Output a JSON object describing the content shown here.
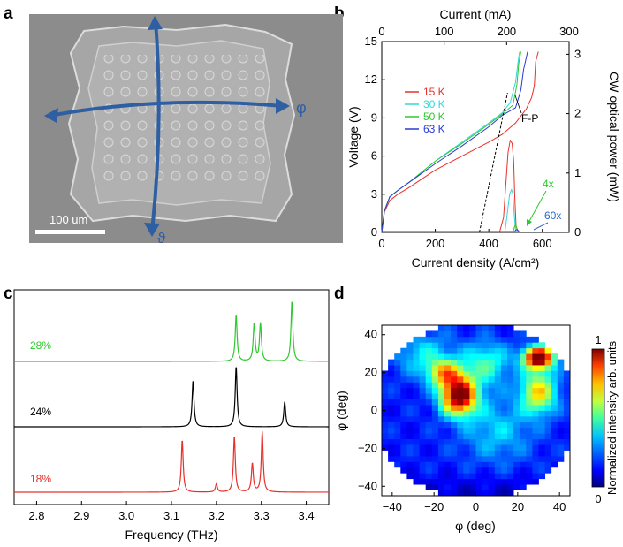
{
  "panels": {
    "a": "a",
    "b": "b",
    "c": "c",
    "d": "d"
  },
  "panel_a": {
    "scale_bar": "100 um",
    "axis_phi": "φ",
    "axis_theta": "ϑ",
    "colors": {
      "axes": "#2e5fa3",
      "sem_bg": "#8a8a8a",
      "scale_bar": "#ffffff"
    }
  },
  "chart_data": [
    {
      "panel": "b",
      "type": "line",
      "title": "",
      "xlabel": "Current density (A/cm²)",
      "xlabel_top": "Current (mA)",
      "ylabel": "Voltage (V)",
      "ylabel_right": "CW optical power (mW)",
      "xlim": [
        0,
        700
      ],
      "xlim_top": [
        0,
        300
      ],
      "ylim": [
        0,
        15
      ],
      "ylim_right": [
        0,
        3.214
      ],
      "x_ticks": [
        "0",
        "200",
        "400",
        "600"
      ],
      "x_tick_values": [
        0,
        200,
        400,
        600
      ],
      "x_top_ticks": [
        "0",
        "100",
        "200",
        "300"
      ],
      "x_top_tick_values": [
        0,
        100,
        200,
        300
      ],
      "y_ticks": [
        "0",
        "3",
        "6",
        "9",
        "12",
        "15"
      ],
      "y_tick_values": [
        0,
        3,
        6,
        9,
        12,
        15
      ],
      "y_right_ticks": [
        "0",
        "1",
        "2",
        "3"
      ],
      "y_right_tick_values": [
        0,
        1,
        2,
        3
      ],
      "legend": [
        {
          "name": "15 K",
          "color": "#e8302a"
        },
        {
          "name": "30 K",
          "color": "#30d8d8"
        },
        {
          "name": "50 K",
          "color": "#2ec82e"
        },
        {
          "name": "63 K",
          "color": "#2a3ad0"
        }
      ],
      "voltage_series": [
        {
          "name": "15 K",
          "color": "#e8302a",
          "x": [
            0,
            10,
            30,
            60,
            100,
            200,
            300,
            400,
            450,
            500,
            540,
            560,
            570,
            575,
            585
          ],
          "y": [
            0,
            1.6,
            2.5,
            3.0,
            3.5,
            4.9,
            6.0,
            7.1,
            7.7,
            8.6,
            9.7,
            10.6,
            11.5,
            13.4,
            14.2
          ]
        },
        {
          "name": "30 K",
          "color": "#30d8d8",
          "x": [
            0,
            10,
            30,
            60,
            100,
            200,
            300,
            400,
            450,
            480,
            500,
            510,
            515
          ],
          "y": [
            0,
            1.7,
            2.8,
            3.3,
            3.9,
            5.6,
            7.1,
            8.6,
            9.4,
            10.2,
            11.8,
            13.5,
            14.2
          ]
        },
        {
          "name": "50 K",
          "color": "#2ec82e",
          "x": [
            0,
            10,
            30,
            60,
            100,
            200,
            300,
            400,
            450,
            490,
            505,
            512,
            520
          ],
          "y": [
            0,
            1.7,
            2.8,
            3.3,
            3.9,
            5.6,
            7.0,
            8.5,
            9.3,
            10.0,
            11.6,
            13.3,
            14.2
          ]
        },
        {
          "name": "63 K",
          "color": "#2a3ad0",
          "x": [
            0,
            10,
            30,
            60,
            100,
            200,
            300,
            400,
            450,
            500,
            520,
            530,
            545
          ],
          "y": [
            0,
            1.7,
            2.8,
            3.3,
            3.9,
            5.4,
            6.8,
            8.3,
            9.2,
            9.8,
            11.2,
            12.8,
            14.2
          ]
        }
      ],
      "power_series": [
        {
          "name": "15 K",
          "color": "#e8302a",
          "x": [
            440,
            455,
            465,
            472,
            480,
            487,
            493,
            497,
            502,
            510
          ],
          "y": [
            0,
            0.25,
            0.9,
            1.35,
            1.55,
            1.5,
            1.2,
            0.6,
            0.1,
            0
          ]
        },
        {
          "name": "30 K",
          "color": "#30d8d8",
          "x": [
            460,
            470,
            478,
            485,
            490,
            495,
            500,
            505
          ],
          "y": [
            0,
            0.35,
            0.65,
            0.72,
            0.65,
            0.3,
            0.05,
            0
          ]
        },
        {
          "name": "50 K",
          "color": "#2ec82e",
          "x": [
            490,
            495,
            500,
            505,
            510
          ],
          "y": [
            0,
            0.08,
            0.14,
            0.07,
            0
          ]
        },
        {
          "name": "63 K",
          "color": "#2a3ad0",
          "x": [
            495,
            500,
            505,
            510,
            515
          ],
          "y": [
            0,
            0.035,
            0.05,
            0.03,
            0
          ]
        }
      ],
      "fp_line": {
        "x": [
          365,
          470
        ],
        "y_power": [
          0,
          2.35
        ]
      },
      "annotations": [
        {
          "text": "F-P",
          "color": "#000000"
        },
        {
          "text": "4x",
          "color": "#2ec82e"
        },
        {
          "text": "60x",
          "color": "#2a6ad0"
        }
      ]
    },
    {
      "panel": "c",
      "type": "line",
      "title": "",
      "xlabel": "Frequency (THz)",
      "ylabel": "",
      "xlim": [
        2.75,
        3.45
      ],
      "x_ticks": [
        "2.8",
        "2.9",
        "3.0",
        "3.1",
        "3.2",
        "3.3",
        "3.4"
      ],
      "x_tick_values": [
        2.8,
        2.9,
        3.0,
        3.1,
        3.2,
        3.3,
        3.4
      ],
      "series": [
        {
          "name": "28%",
          "color": "#2ec82e",
          "peaks": [
            {
              "x": 3.244,
              "h": 0.55
            },
            {
              "x": 3.284,
              "h": 0.45
            },
            {
              "x": 3.298,
              "h": 0.45
            },
            {
              "x": 3.368,
              "h": 0.72
            }
          ]
        },
        {
          "name": "24%",
          "color": "#000000",
          "peaks": [
            {
              "x": 3.148,
              "h": 0.55
            },
            {
              "x": 3.244,
              "h": 0.72
            },
            {
              "x": 3.352,
              "h": 0.3
            }
          ]
        },
        {
          "name": "18%",
          "color": "#e8302a",
          "peaks": [
            {
              "x": 3.124,
              "h": 0.62
            },
            {
              "x": 3.2,
              "h": 0.1
            },
            {
              "x": 3.24,
              "h": 0.66
            },
            {
              "x": 3.28,
              "h": 0.34
            },
            {
              "x": 3.302,
              "h": 0.72
            }
          ]
        }
      ]
    },
    {
      "panel": "d",
      "type": "heatmap",
      "title": "",
      "xlabel": "φ (deg)",
      "ylabel": "φ (deg)",
      "xlim": [
        -45,
        45
      ],
      "ylim": [
        -45,
        45
      ],
      "x_ticks": [
        "−40",
        "−20",
        "0",
        "20",
        "40"
      ],
      "x_tick_values": [
        -40,
        -20,
        0,
        20,
        40
      ],
      "y_ticks": [
        "−40",
        "−20",
        "0",
        "20",
        "40"
      ],
      "y_tick_values": [
        -40,
        -20,
        0,
        20,
        40
      ],
      "colorbar_label": "Normalized intensity arb. units",
      "colorbar_range": [
        0,
        1
      ],
      "colorbar_ticks": [
        "0",
        "1"
      ],
      "blobs": [
        {
          "x": -8,
          "y": 8,
          "sx": 6,
          "sy": 7,
          "amp": 0.9
        },
        {
          "x": -15,
          "y": 20,
          "sx": 6,
          "sy": 5,
          "amp": 0.45
        },
        {
          "x": 30,
          "y": 28,
          "sx": 5,
          "sy": 4,
          "amp": 0.95
        },
        {
          "x": 30,
          "y": 10,
          "sx": 6,
          "sy": 8,
          "amp": 0.5
        },
        {
          "x": 5,
          "y": 25,
          "sx": 8,
          "sy": 8,
          "amp": 0.28
        },
        {
          "x": -25,
          "y": 30,
          "sx": 10,
          "sy": 8,
          "amp": 0.2
        },
        {
          "x": 10,
          "y": -10,
          "sx": 12,
          "sy": 12,
          "amp": 0.18
        }
      ]
    }
  ]
}
